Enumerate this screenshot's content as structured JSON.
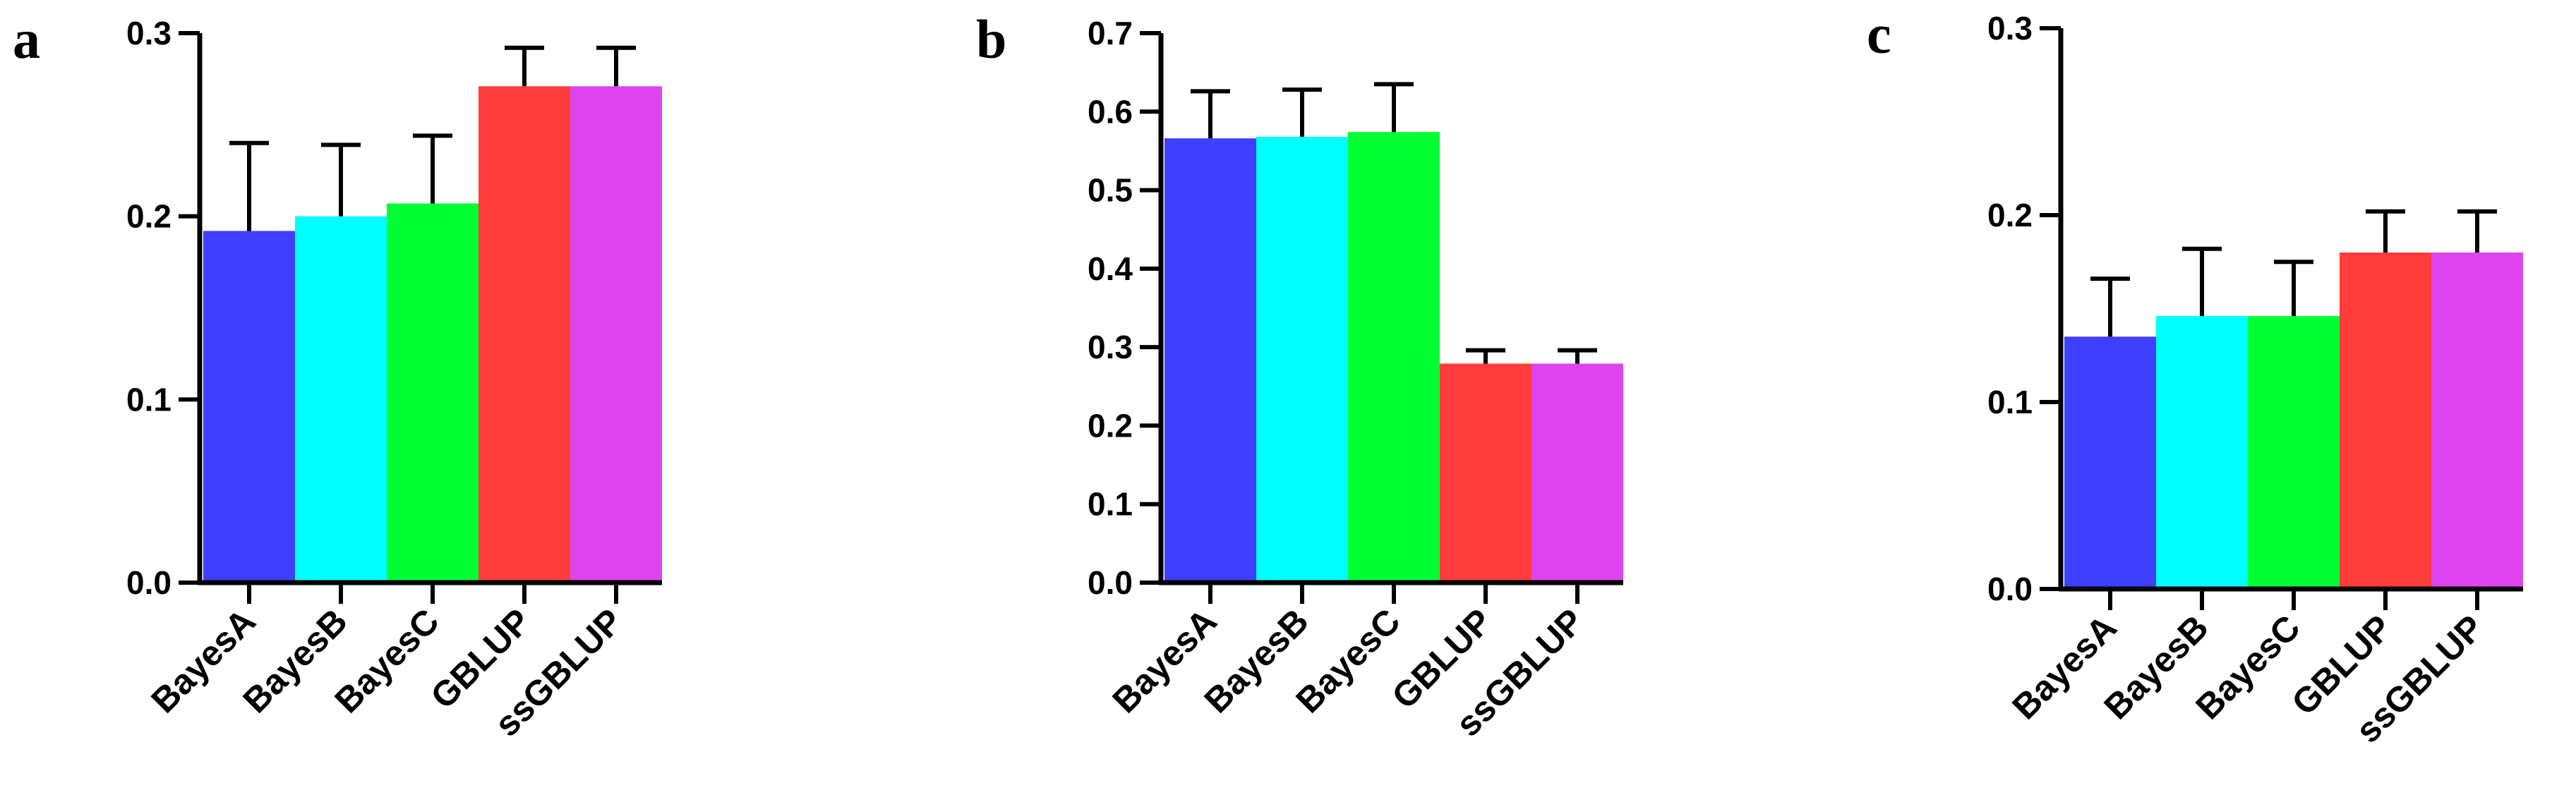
{
  "chart_data": [
    {
      "type": "bar",
      "panel_label": "a",
      "categories": [
        "BayesA",
        "BayesB",
        "BayesC",
        "GBLUP",
        "ssGBLUP"
      ],
      "values": [
        0.192,
        0.2,
        0.207,
        0.271,
        0.271
      ],
      "errors": [
        0.048,
        0.039,
        0.037,
        0.021,
        0.021
      ],
      "colors": [
        "#3f3fff",
        "#00ffff",
        "#00ff33",
        "#ff3b3b",
        "#dd44ee"
      ],
      "ylim": [
        0,
        0.3
      ],
      "yticks": [
        "0.0",
        "0.1",
        "0.2",
        "0.3"
      ],
      "grid": false
    },
    {
      "type": "bar",
      "panel_label": "b",
      "categories": [
        "BayesA",
        "BayesB",
        "BayesC",
        "GBLUP",
        "ssGBLUP"
      ],
      "values": [
        0.566,
        0.568,
        0.574,
        0.279,
        0.279
      ],
      "errors": [
        0.06,
        0.06,
        0.061,
        0.017,
        0.017
      ],
      "colors": [
        "#3f3fff",
        "#00ffff",
        "#00ff33",
        "#ff3b3b",
        "#dd44ee"
      ],
      "ylim": [
        0,
        0.7
      ],
      "yticks": [
        "0.0",
        "0.1",
        "0.2",
        "0.3",
        "0.4",
        "0.5",
        "0.6",
        "0.7"
      ],
      "grid": false
    },
    {
      "type": "bar",
      "panel_label": "c",
      "categories": [
        "BayesA",
        "BayesB",
        "BayesC",
        "GBLUP",
        "ssGBLUP"
      ],
      "values": [
        0.135,
        0.146,
        0.146,
        0.18,
        0.18
      ],
      "errors": [
        0.031,
        0.036,
        0.029,
        0.022,
        0.022
      ],
      "colors": [
        "#3f3fff",
        "#00ffff",
        "#00ff33",
        "#ff3b3b",
        "#dd44ee"
      ],
      "ylim": [
        0,
        0.3
      ],
      "yticks": [
        "0.0",
        "0.1",
        "0.2",
        "0.3"
      ],
      "grid": false
    }
  ]
}
